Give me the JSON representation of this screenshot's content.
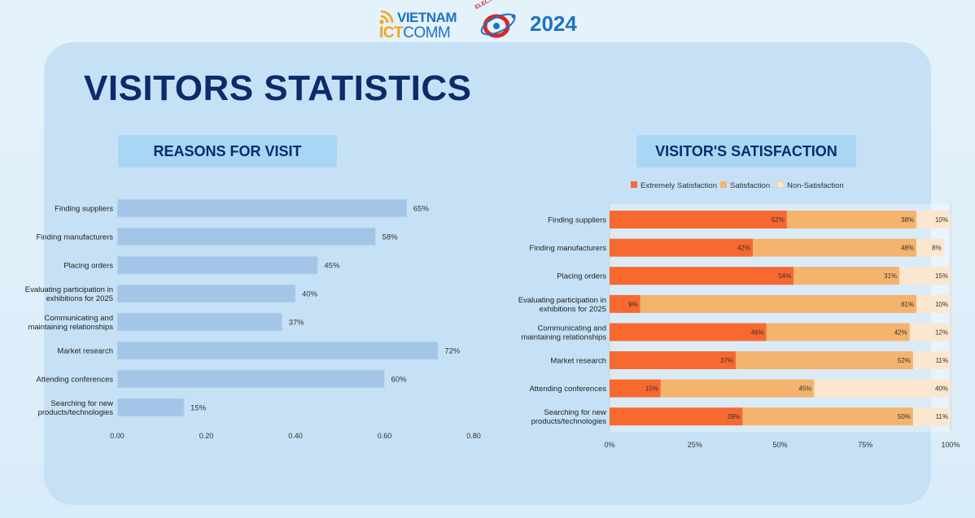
{
  "header": {
    "logo_vietnam": "VIETNAM",
    "logo_ict": "ICT",
    "logo_comm": "COMM",
    "logo_electro": "ELECTROEXPO",
    "year": "2024"
  },
  "page_title": "VISITORS STATISTICS",
  "colors": {
    "reason_bar": "#a3c6e8",
    "extreme": "#f7692f",
    "satisfaction": "#f4b46e",
    "non_satisfaction": "#fbe6cf"
  },
  "chart_data": [
    {
      "type": "bar",
      "orientation": "horizontal",
      "title": "REASONS FOR VISIT",
      "categories": [
        "Finding suppliers",
        "Finding manufacturers",
        "Placing orders",
        "Evaluating participation in exhibitions for 2025",
        "Communicating and maintaining relationships",
        "Market research",
        "Attending conferences",
        "Searching for new products/technologies"
      ],
      "category_lines": [
        [
          "Finding suppliers"
        ],
        [
          "Finding manufacturers"
        ],
        [
          "Placing orders"
        ],
        [
          "Evaluating participation in",
          "exhibitions for 2025"
        ],
        [
          "Communicating and",
          "maintaining relationships"
        ],
        [
          "Market research"
        ],
        [
          "Attending conferences"
        ],
        [
          "Searching for new",
          "products/technologies"
        ]
      ],
      "values": [
        0.65,
        0.58,
        0.45,
        0.4,
        0.37,
        0.72,
        0.6,
        0.15
      ],
      "value_labels": [
        "65%",
        "58%",
        "45%",
        "40%",
        "37%",
        "72%",
        "60%",
        "15%"
      ],
      "xlim": [
        0,
        0.8
      ],
      "xticks": [
        0,
        0.2,
        0.4,
        0.6,
        0.8
      ],
      "xtick_labels": [
        "0.00",
        "0.20",
        "0.40",
        "0.60",
        "0.80"
      ]
    },
    {
      "type": "bar",
      "orientation": "horizontal",
      "stacked": true,
      "title": "VISITOR'S SATISFACTION",
      "categories": [
        "Finding suppliers",
        "Finding manufacturers",
        "Placing orders",
        "Evaluating participation in exhibitions for 2025",
        "Communicating and maintaining relationships",
        "Market research",
        "Attending conferences",
        "Searching for new products/technologies"
      ],
      "category_lines": [
        [
          "Finding suppliers"
        ],
        [
          "Finding manufacturers"
        ],
        [
          "Placing orders"
        ],
        [
          "Evaluating participation in",
          "exhibitions for 2025"
        ],
        [
          "Communicating and",
          "maintaining relationships"
        ],
        [
          "Market research"
        ],
        [
          "Attending conferences"
        ],
        [
          "Searching for new",
          "products/technologies"
        ]
      ],
      "series": [
        {
          "name": "Extremely Satisfaction",
          "values": [
            52,
            42,
            54,
            9,
            46,
            37,
            15,
            39
          ]
        },
        {
          "name": "Satisfaction",
          "values": [
            38,
            48,
            31,
            81,
            42,
            52,
            45,
            50
          ]
        },
        {
          "name": "Non-Satisfaction",
          "values": [
            10,
            8,
            15,
            10,
            12,
            11,
            40,
            11
          ]
        }
      ],
      "legend_position": "top",
      "xlim": [
        0,
        100
      ],
      "xticks": [
        0,
        25,
        50,
        75,
        100
      ],
      "xtick_labels": [
        "0%",
        "25%",
        "50%",
        "75%",
        "100%"
      ]
    }
  ]
}
